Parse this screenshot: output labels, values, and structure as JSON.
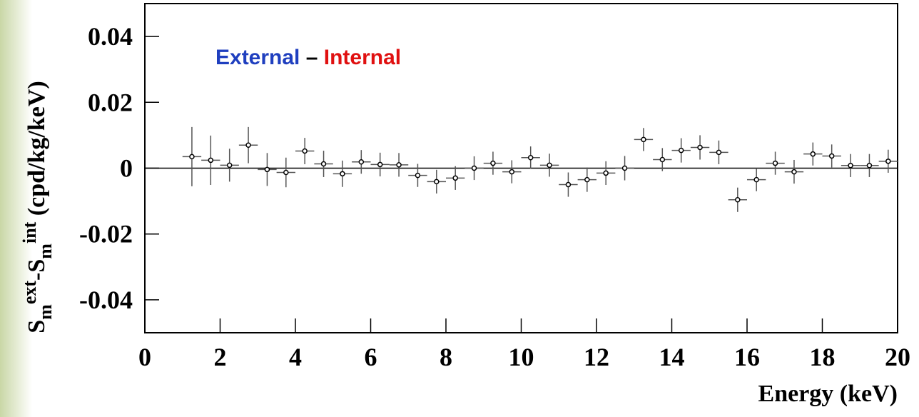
{
  "chart_data": {
    "type": "errorbar",
    "ylabel_parts": [
      "S",
      "m",
      "ext",
      "-S",
      "m",
      "int",
      " (cpd/kg/keV)"
    ],
    "annotation_parts": [
      {
        "text": "External",
        "color": "#1f3fbf"
      },
      {
        "text": " – ",
        "color": "#000000"
      },
      {
        "text": "Internal",
        "color": "#e01010"
      }
    ],
    "xlabel": "Energy (keV)",
    "xlim": [
      0,
      20
    ],
    "xticks": [
      0,
      2,
      4,
      6,
      8,
      10,
      12,
      14,
      16,
      18,
      20
    ],
    "ylim": [
      -0.05,
      0.05
    ],
    "yticks": [
      -0.04,
      -0.02,
      0,
      0.02,
      0.04
    ],
    "zero_line": true,
    "xerr": 0.25,
    "x": [
      1.25,
      1.75,
      2.25,
      2.75,
      3.25,
      3.75,
      4.25,
      4.75,
      5.25,
      5.75,
      6.25,
      6.75,
      7.25,
      7.75,
      8.25,
      8.75,
      9.25,
      9.75,
      10.25,
      10.75,
      11.25,
      11.75,
      12.25,
      12.75,
      13.25,
      13.75,
      14.25,
      14.75,
      15.25,
      15.75,
      16.25,
      16.75,
      17.25,
      17.75,
      18.25,
      18.75,
      19.25,
      19.75
    ],
    "values": [
      0.0035,
      0.0024,
      0.0009,
      0.007,
      -0.0004,
      -0.0013,
      0.0052,
      0.0013,
      -0.0017,
      0.0019,
      0.0011,
      0.001,
      -0.0022,
      -0.0041,
      -0.003,
      0,
      0.0015,
      -0.0011,
      0.0032,
      0.0009,
      -0.005,
      -0.0035,
      -0.0015,
      0,
      0.0087,
      0.0026,
      0.0054,
      0.0063,
      0.0048,
      -0.0096,
      -0.0035,
      0.0015,
      -0.0011,
      0.0043,
      0.0037,
      0.0008,
      0.0008,
      0.0021
    ],
    "errors": [
      0.009,
      0.0075,
      0.005,
      0.0055,
      0.005,
      0.0045,
      0.004,
      0.004,
      0.004,
      0.0036,
      0.0036,
      0.0036,
      0.0035,
      0.0036,
      0.0036,
      0.0036,
      0.0035,
      0.0035,
      0.0034,
      0.0035,
      0.0037,
      0.0037,
      0.0036,
      0.0037,
      0.0035,
      0.0035,
      0.0037,
      0.0037,
      0.0036,
      0.0037,
      0.0035,
      0.0035,
      0.0036,
      0.0035,
      0.0035,
      0.0035,
      0.0035,
      0.0035
    ],
    "color": "#000000"
  }
}
